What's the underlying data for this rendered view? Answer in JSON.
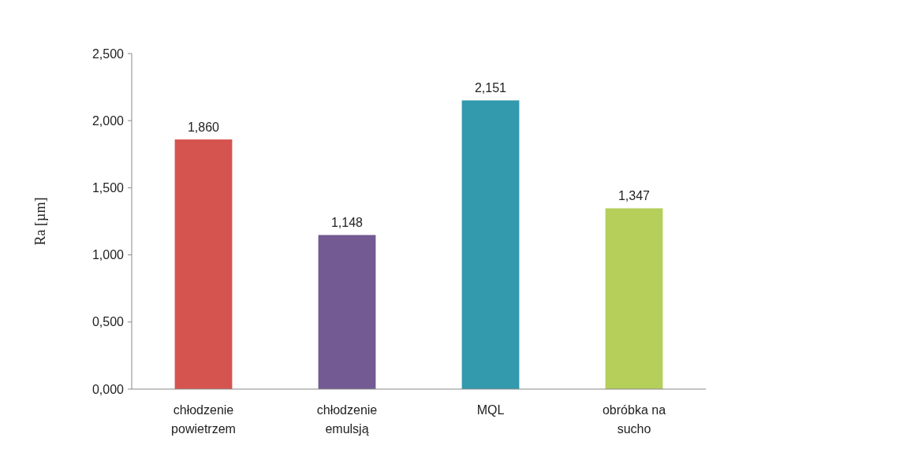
{
  "chart_data": {
    "type": "bar",
    "ylabel": "Ra [µm]",
    "categories": [
      "chłodzenie powietrzem",
      "chłodzenie emulsją",
      "MQL",
      "obróbka na sucho"
    ],
    "values": [
      1.86,
      1.148,
      2.151,
      1.347
    ],
    "value_labels": [
      "1,860",
      "1,148",
      "2,151",
      "1,347"
    ],
    "colors": [
      "#d6544f",
      "#735a93",
      "#3399ad",
      "#b5cf5a"
    ],
    "ylim": [
      0,
      2.5
    ],
    "yticks": [
      {
        "value": 0,
        "label": "0,000"
      },
      {
        "value": 0.5,
        "label": "0,500"
      },
      {
        "value": 1,
        "label": "1,000"
      },
      {
        "value": 1.5,
        "label": "1,500"
      },
      {
        "value": 2,
        "label": "2,000"
      },
      {
        "value": 2.5,
        "label": "2,500"
      }
    ],
    "grid": false
  }
}
